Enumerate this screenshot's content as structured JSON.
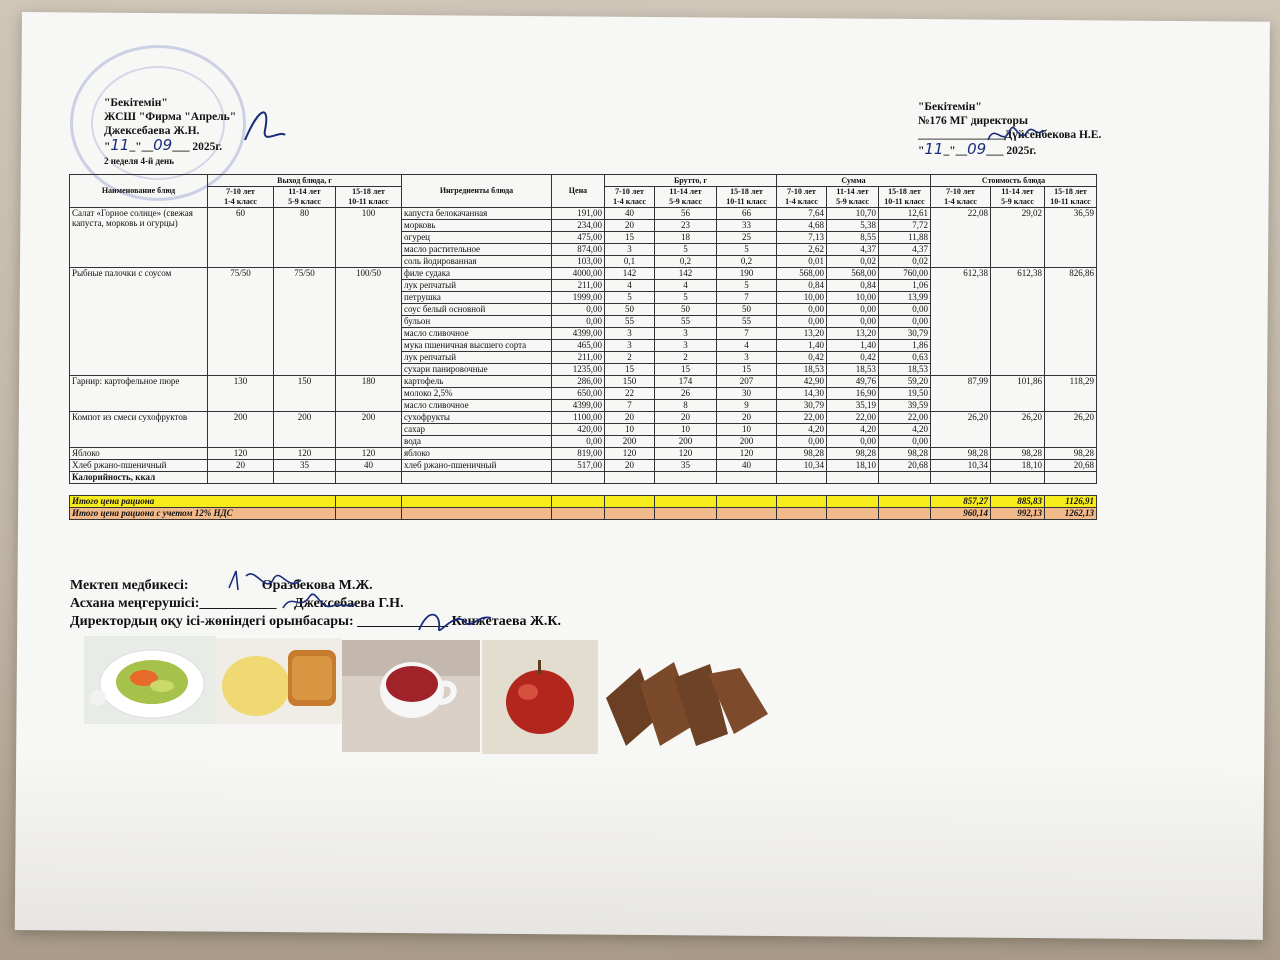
{
  "approval_left": {
    "heading": "\"Бекітемін\"",
    "org": "ЖСШ \"Фирма \"Апрель\"",
    "person": "Джексебаева Ж.Н.",
    "date_day": "11",
    "date_month": "09",
    "date_year": "2025г.",
    "week": "2 неделя 4-й день"
  },
  "approval_right": {
    "heading": "\"Бекітемін\"",
    "org": "№176 МГ директоры",
    "person": "Дүйсенбекова Н.Е.",
    "date_day": "11",
    "date_month": "09",
    "date_year": "2025г."
  },
  "headers": {
    "dish": "Наименование блюд",
    "output": "Выход блюда, г",
    "ingredients": "Ингредиенты блюда",
    "price": "Цена",
    "brutto": "Брутто, г",
    "sum": "Сумма",
    "cost": "Стоимость блюда",
    "age1": "7-10 лет",
    "cls1": "1-4 класс",
    "age2": "11-14 лет",
    "cls2": "5-9 класс",
    "age3": "15-18 лет",
    "cls3": "10-11 класс"
  },
  "dishes": [
    {
      "name": "Салат «Горное солнце» (свежая капуста, морковь и огурцы)",
      "out": [
        "60",
        "80",
        "100"
      ],
      "cost": [
        "22,08",
        "29,02",
        "36,59"
      ],
      "ingredients": [
        {
          "n": "капуста белокачанная",
          "p": "191,00",
          "b": [
            "40",
            "56",
            "66"
          ],
          "s": [
            "7,64",
            "10,70",
            "12,61"
          ]
        },
        {
          "n": "морковь",
          "p": "234,00",
          "b": [
            "20",
            "23",
            "33"
          ],
          "s": [
            "4,68",
            "5,38",
            "7,72"
          ]
        },
        {
          "n": "огурец",
          "p": "475,00",
          "b": [
            "15",
            "18",
            "25"
          ],
          "s": [
            "7,13",
            "8,55",
            "11,88"
          ]
        },
        {
          "n": "масло растительное",
          "p": "874,00",
          "b": [
            "3",
            "5",
            "5"
          ],
          "s": [
            "2,62",
            "4,37",
            "4,37"
          ]
        },
        {
          "n": "соль йодированная",
          "p": "103,00",
          "b": [
            "0,1",
            "0,2",
            "0,2"
          ],
          "s": [
            "0,01",
            "0,02",
            "0,02"
          ]
        }
      ]
    },
    {
      "name": "Рыбные палочки с соусом",
      "out": [
        "75/50",
        "75/50",
        "100/50"
      ],
      "cost": [
        "612,38",
        "612,38",
        "826,86"
      ],
      "ingredients": [
        {
          "n": "филе судака",
          "p": "4000,00",
          "b": [
            "142",
            "142",
            "190"
          ],
          "s": [
            "568,00",
            "568,00",
            "760,00"
          ]
        },
        {
          "n": "лук репчатый",
          "p": "211,00",
          "b": [
            "4",
            "4",
            "5"
          ],
          "s": [
            "0,84",
            "0,84",
            "1,06"
          ]
        },
        {
          "n": "петрушка",
          "p": "1999,00",
          "b": [
            "5",
            "5",
            "7"
          ],
          "s": [
            "10,00",
            "10,00",
            "13,99"
          ]
        },
        {
          "n": "соус белый основной",
          "p": "0,00",
          "b": [
            "50",
            "50",
            "50"
          ],
          "s": [
            "0,00",
            "0,00",
            "0,00"
          ]
        },
        {
          "n": "бульон",
          "p": "0,00",
          "b": [
            "55",
            "55",
            "55"
          ],
          "s": [
            "0,00",
            "0,00",
            "0,00"
          ]
        },
        {
          "n": "масло сливочное",
          "p": "4399,00",
          "b": [
            "3",
            "3",
            "7"
          ],
          "s": [
            "13,20",
            "13,20",
            "30,79"
          ]
        },
        {
          "n": "мука пшеничная высшего сорта",
          "p": "465,00",
          "b": [
            "3",
            "3",
            "4"
          ],
          "s": [
            "1,40",
            "1,40",
            "1,86"
          ]
        },
        {
          "n": "лук репчатый",
          "p": "211,00",
          "b": [
            "2",
            "2",
            "3"
          ],
          "s": [
            "0,42",
            "0,42",
            "0,63"
          ]
        },
        {
          "n": "сухари панировочные",
          "p": "1235,00",
          "b": [
            "15",
            "15",
            "15"
          ],
          "s": [
            "18,53",
            "18,53",
            "18,53"
          ]
        }
      ]
    },
    {
      "name": "Гарнир:  картофельное пюре",
      "out": [
        "130",
        "150",
        "180"
      ],
      "cost": [
        "87,99",
        "101,86",
        "118,29"
      ],
      "ingredients": [
        {
          "n": "картофель",
          "p": "286,00",
          "b": [
            "150",
            "174",
            "207"
          ],
          "s": [
            "42,90",
            "49,76",
            "59,20"
          ]
        },
        {
          "n": "молоко 2,5%",
          "p": "650,00",
          "b": [
            "22",
            "26",
            "30"
          ],
          "s": [
            "14,30",
            "16,90",
            "19,50"
          ]
        },
        {
          "n": "масло сливочное",
          "p": "4399,00",
          "b": [
            "7",
            "8",
            "9"
          ],
          "s": [
            "30,79",
            "35,19",
            "39,59"
          ]
        }
      ]
    },
    {
      "name": "Компот из смеси сухофруктов",
      "out": [
        "200",
        "200",
        "200"
      ],
      "cost": [
        "26,20",
        "26,20",
        "26,20"
      ],
      "ingredients": [
        {
          "n": "сухофрукты",
          "p": "1100,00",
          "b": [
            "20",
            "20",
            "20"
          ],
          "s": [
            "22,00",
            "22,00",
            "22,00"
          ]
        },
        {
          "n": "сахар",
          "p": "420,00",
          "b": [
            "10",
            "10",
            "10"
          ],
          "s": [
            "4,20",
            "4,20",
            "4,20"
          ]
        },
        {
          "n": "вода",
          "p": "0,00",
          "b": [
            "200",
            "200",
            "200"
          ],
          "s": [
            "0,00",
            "0,00",
            "0,00"
          ]
        }
      ]
    },
    {
      "name": "Яблоко",
      "out": [
        "120",
        "120",
        "120"
      ],
      "cost": [
        "98,28",
        "98,28",
        "98,28"
      ],
      "ingredients": [
        {
          "n": "яблоко",
          "p": "819,00",
          "b": [
            "120",
            "120",
            "120"
          ],
          "s": [
            "98,28",
            "98,28",
            "98,28"
          ]
        }
      ]
    },
    {
      "name": "Хлеб ржано-пшеничный",
      "out": [
        "20",
        "35",
        "40"
      ],
      "cost": [
        "10,34",
        "18,10",
        "20,68"
      ],
      "ingredients": [
        {
          "n": "хлеб ржано-пшеничный",
          "p": "517,00",
          "b": [
            "20",
            "35",
            "40"
          ],
          "s": [
            "10,34",
            "18,10",
            "20,68"
          ]
        }
      ]
    }
  ],
  "calories_label": "Калорийность, ккал",
  "total1": {
    "label": "Итого цена рациона",
    "v": [
      "857,27",
      "885,83",
      "1126,91"
    ]
  },
  "total2": {
    "label": "Итого цена рациона с учетом 12% НДС",
    "v": [
      "960,14",
      "992,13",
      "1262,13"
    ]
  },
  "staff": [
    {
      "role": "Мектеп медбикесі:",
      "name": "Оразбекова М.Ж."
    },
    {
      "role": "Асхана меңгерушісі:___________",
      "name": "Джексебаева Г.Н."
    },
    {
      "role": "Директордың оқу ісі-жөніндегі орынбасары:",
      "name": "Кенжетаева Ж.К."
    }
  ],
  "photos": [
    "salad-photo",
    "mashed-potato-fish-photo",
    "tea-cup-photo",
    "apple-photo",
    "bread-photo"
  ]
}
